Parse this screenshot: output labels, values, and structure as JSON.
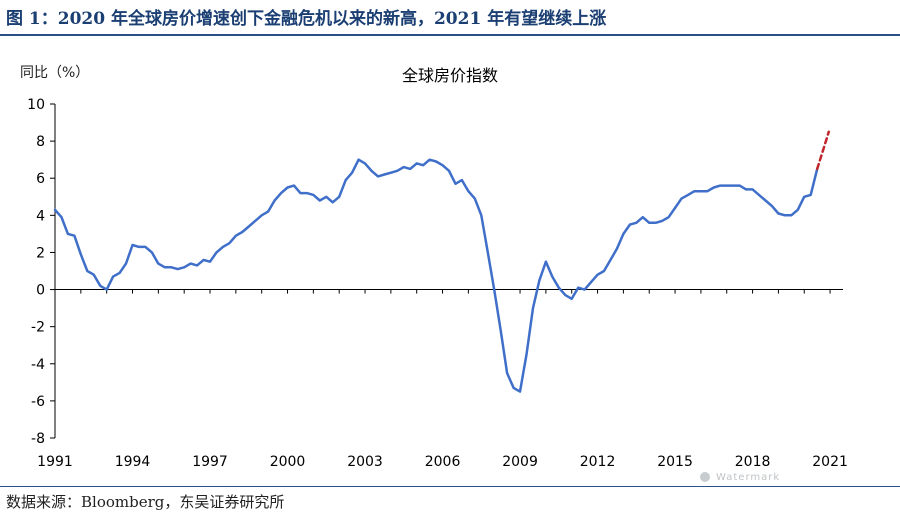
{
  "header": {
    "figure_title": "图 1：2020 年全球房价增速创下金融危机以来的新高，2021 年有望继续上涨"
  },
  "footer": {
    "source": "数据来源：Bloomberg，东吴证券研究所",
    "watermark": "Watermark"
  },
  "chart_data": {
    "type": "line",
    "title": "全球房价指数",
    "ylabel": "同比（%）",
    "xlabel": "",
    "ylim": [
      -8,
      10
    ],
    "yticks": [
      -8,
      -6,
      -4,
      -2,
      0,
      2,
      4,
      6,
      8,
      10
    ],
    "xlim": [
      1991,
      2021.5
    ],
    "xticks": [
      1991,
      1994,
      1997,
      2000,
      2003,
      2006,
      2009,
      2012,
      2015,
      2018,
      2021
    ],
    "grid": false,
    "colors": {
      "line": "#3f6fc9",
      "projection": "#c0262c",
      "axis": "#000000"
    },
    "series": [
      {
        "style": "solid",
        "x": [
          1991.0,
          1991.25,
          1991.5,
          1991.75,
          1992.0,
          1992.25,
          1992.5,
          1992.75,
          1993.0,
          1993.25,
          1993.5,
          1993.75,
          1994.0,
          1994.25,
          1994.5,
          1994.75,
          1995.0,
          1995.25,
          1995.5,
          1995.75,
          1996.0,
          1996.25,
          1996.5,
          1996.75,
          1997.0,
          1997.25,
          1997.5,
          1997.75,
          1998.0,
          1998.25,
          1998.5,
          1998.75,
          1999.0,
          1999.25,
          1999.5,
          1999.75,
          2000.0,
          2000.25,
          2000.5,
          2000.75,
          2001.0,
          2001.25,
          2001.5,
          2001.75,
          2002.0,
          2002.25,
          2002.5,
          2002.75,
          2003.0,
          2003.25,
          2003.5,
          2003.75,
          2004.0,
          2004.25,
          2004.5,
          2004.75,
          2005.0,
          2005.25,
          2005.5,
          2005.75,
          2006.0,
          2006.25,
          2006.5,
          2006.75,
          2007.0,
          2007.25,
          2007.5,
          2007.75,
          2008.0,
          2008.25,
          2008.5,
          2008.75,
          2009.0,
          2009.25,
          2009.5,
          2009.75,
          2010.0,
          2010.25,
          2010.5,
          2010.75,
          2011.0,
          2011.25,
          2011.5,
          2011.75,
          2012.0,
          2012.25,
          2012.5,
          2012.75,
          2013.0,
          2013.25,
          2013.5,
          2013.75,
          2014.0,
          2014.25,
          2014.5,
          2014.75,
          2015.0,
          2015.25,
          2015.5,
          2015.75,
          2016.0,
          2016.25,
          2016.5,
          2016.75,
          2017.0,
          2017.25,
          2017.5,
          2017.75,
          2018.0,
          2018.25,
          2018.5,
          2018.75,
          2019.0,
          2019.25,
          2019.5,
          2019.75,
          2020.0,
          2020.25,
          2020.5
        ],
        "y": [
          4.3,
          3.9,
          3.0,
          2.9,
          1.9,
          1.0,
          0.8,
          0.2,
          0.0,
          0.7,
          0.9,
          1.4,
          2.4,
          2.3,
          2.3,
          2.0,
          1.4,
          1.2,
          1.2,
          1.1,
          1.2,
          1.4,
          1.3,
          1.6,
          1.5,
          2.0,
          2.3,
          2.5,
          2.9,
          3.1,
          3.4,
          3.7,
          4.0,
          4.2,
          4.8,
          5.2,
          5.5,
          5.6,
          5.2,
          5.2,
          5.1,
          4.8,
          5.0,
          4.7,
          5.0,
          5.9,
          6.3,
          7.0,
          6.8,
          6.4,
          6.1,
          6.2,
          6.3,
          6.4,
          6.6,
          6.5,
          6.8,
          6.7,
          7.0,
          6.9,
          6.7,
          6.4,
          5.7,
          5.9,
          5.3,
          4.9,
          4.0,
          2.0,
          0.0,
          -2.2,
          -4.5,
          -5.3,
          -5.5,
          -3.5,
          -1.0,
          0.5,
          1.5,
          0.7,
          0.1,
          -0.3,
          -0.5,
          0.1,
          0.0,
          0.4,
          0.8,
          1.0,
          1.6,
          2.2,
          3.0,
          3.5,
          3.6,
          3.9,
          3.6,
          3.6,
          3.7,
          3.9,
          4.4,
          4.9,
          5.1,
          5.3,
          5.3,
          5.3,
          5.5,
          5.6,
          5.6,
          5.6,
          5.6,
          5.4,
          5.4,
          5.1,
          4.8,
          4.5,
          4.1,
          4.0,
          4.0,
          4.3,
          5.0,
          5.1,
          6.5
        ]
      },
      {
        "style": "dashed",
        "x": [
          2020.5,
          2020.75,
          2020.95
        ],
        "y": [
          6.5,
          7.6,
          8.5
        ]
      }
    ]
  }
}
